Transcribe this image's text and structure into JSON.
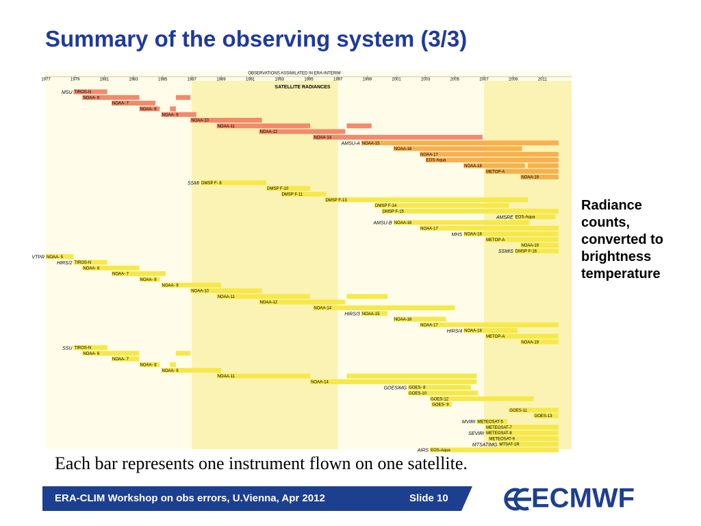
{
  "slide": {
    "title": "Summary of the observing system (3/3)",
    "note": "Radiance counts, converted to brightness temperature",
    "caption": "Each bar represents one instrument flown on one satellite.",
    "footer": "ERA-CLIM Workshop on obs errors, U.Vienna, Apr 2012",
    "slide_number": "Slide 10",
    "logo": "ECMWF"
  },
  "chart_data": {
    "type": "gantt",
    "title": "OBSERVATIONS ASSIMILATED IN ERA-INTERIM",
    "subtitle": "SATELLITE RADIANCES",
    "xlim": [
      1977,
      2013
    ],
    "xticks": [
      1977,
      1979,
      1981,
      1983,
      1985,
      1987,
      1989,
      1991,
      1993,
      1995,
      1997,
      1999,
      2001,
      2003,
      2005,
      2007,
      2009,
      2011
    ],
    "shaded": [
      [
        1987,
        1997
      ],
      [
        2007,
        2013
      ]
    ],
    "groups": [
      {
        "label": "MSU",
        "color": "#f28a6b",
        "rows": [
          {
            "name": "TIROS-N",
            "bars": [
              [
                1978.9,
                1981.2
              ]
            ]
          },
          {
            "name": "NOAA- 6",
            "bars": [
              [
                1979.5,
                1983.4
              ],
              [
                1985.9,
                1986.9
              ]
            ]
          },
          {
            "name": "NOAA- 7",
            "bars": [
              [
                1981.5,
                1984.5
              ]
            ]
          },
          {
            "name": "NOAA- 8",
            "bars": [
              [
                1983.4,
                1984.8
              ],
              [
                1985.5,
                1985.9
              ]
            ]
          },
          {
            "name": "NOAA- 9",
            "bars": [
              [
                1984.9,
                1987.3
              ]
            ]
          },
          {
            "name": "NOAA-10",
            "bars": [
              [
                1986.9,
                1991.8
              ]
            ]
          },
          {
            "name": "NOAA-11",
            "bars": [
              [
                1988.7,
                1995.1
              ],
              [
                1997.6,
                1999.3
              ]
            ]
          },
          {
            "name": "NOAA-12",
            "bars": [
              [
                1991.6,
                1997.5
              ]
            ]
          },
          {
            "name": "NOAA-14",
            "bars": [
              [
                1995.3,
                2006.9
              ]
            ]
          }
        ]
      },
      {
        "label": "AMSU-A",
        "color": "#f7b04e",
        "rows": [
          {
            "name": "NOAA-15",
            "bars": [
              [
                1998.6,
                2012.1
              ]
            ]
          },
          {
            "name": "NOAA-16",
            "bars": [
              [
                2000.8,
                2009.6
              ]
            ]
          },
          {
            "name": "NOAA-17",
            "bars": [
              [
                2002.6,
                2012.1
              ]
            ]
          },
          {
            "name": "EOS-Aqua",
            "bars": [
              [
                2003,
                2012.1
              ]
            ]
          },
          {
            "name": "NOAA-18",
            "bars": [
              [
                2005.6,
                2009.8
              ],
              [
                2010,
                2012.1
              ]
            ]
          },
          {
            "name": "METOP-A",
            "bars": [
              [
                2007.1,
                2012.1
              ]
            ]
          },
          {
            "name": "NOAA-19",
            "bars": [
              [
                2009.5,
                2012.1
              ]
            ]
          }
        ]
      },
      {
        "label": "SSMI",
        "color": "#f6e84a",
        "rows": [
          {
            "name": "DMSP F- 8",
            "bars": [
              [
                1987.6,
                1992.1
              ]
            ]
          },
          {
            "name": "DMSP F-10",
            "bars": [
              [
                1992.1,
                1995.1
              ]
            ]
          },
          {
            "name": "DMSP F-11",
            "bars": [
              [
                1993.1,
                1996.2
              ]
            ]
          },
          {
            "name": "DMSP F-13",
            "bars": [
              [
                1996.1,
                2010
              ]
            ]
          },
          {
            "name": "DMSP F-14",
            "bars": [
              [
                1999.5,
                2008.7
              ]
            ]
          },
          {
            "name": "DMSP F-15",
            "bars": [
              [
                2000,
                2012.1
              ]
            ]
          }
        ]
      },
      {
        "label": "AMSRE",
        "color": "#f6e84a",
        "rows": [
          {
            "name": "EOS-Aqua",
            "bars": [
              [
                2009.1,
                2011.9
              ]
            ]
          }
        ]
      },
      {
        "label": "AMSU-B",
        "color": "#f6e84a",
        "rows": [
          {
            "name": "NOAA-16",
            "bars": [
              [
                2000.8,
                2010.1
              ]
            ]
          },
          {
            "name": "NOAA-17",
            "bars": [
              [
                2002.6,
                2012.1
              ]
            ]
          }
        ]
      },
      {
        "label": "MHS",
        "color": "#f6e84a",
        "rows": [
          {
            "name": "NOAA-18",
            "bars": [
              [
                2005.6,
                2012.1
              ]
            ]
          },
          {
            "name": "METOP-A",
            "bars": [
              [
                2007.1,
                2012.1
              ]
            ]
          },
          {
            "name": "NOAA-19",
            "bars": [
              [
                2009.5,
                2012.1
              ]
            ]
          }
        ]
      },
      {
        "label": "SSMIS",
        "color": "#f6e84a",
        "rows": [
          {
            "name": "DMSP F-16",
            "bars": [
              [
                2009.1,
                2012.1
              ]
            ]
          }
        ]
      },
      {
        "label": "VTPR",
        "color": "#f6e84a",
        "rows": [
          {
            "name": "NOAA- 5",
            "bars": [
              [
                1977,
                1978.9
              ]
            ]
          }
        ]
      },
      {
        "label": "HIRS/2",
        "color": "#f6e84a",
        "rows": [
          {
            "name": "TIROS-N",
            "bars": [
              [
                1978.9,
                1981.2
              ]
            ]
          },
          {
            "name": "NOAA- 6",
            "bars": [
              [
                1979.5,
                1983.4
              ]
            ]
          },
          {
            "name": "NOAA- 7",
            "bars": [
              [
                1981.5,
                1985.2
              ]
            ]
          },
          {
            "name": "NOAA- 8",
            "bars": [
              [
                1983.4,
                1984.8
              ]
            ]
          },
          {
            "name": "NOAA- 9",
            "bars": [
              [
                1984.9,
                1989
              ]
            ]
          },
          {
            "name": "NOAA-10",
            "bars": [
              [
                1986.9,
                1991.8
              ]
            ]
          },
          {
            "name": "NOAA-11",
            "bars": [
              [
                1988.7,
                1995.1
              ],
              [
                1997.6,
                2000.4
              ]
            ]
          },
          {
            "name": "NOAA-12",
            "bars": [
              [
                1991.6,
                1997.5
              ]
            ]
          },
          {
            "name": "NOAA-14",
            "bars": [
              [
                1995.3,
                2005
              ]
            ]
          }
        ]
      },
      {
        "label": "HIRS/3",
        "color": "#f6e84a",
        "rows": [
          {
            "name": "NOAA-15",
            "bars": [
              [
                1998.6,
                2000.4
              ]
            ]
          },
          {
            "name": "NOAA-16",
            "bars": [
              [
                2000.8,
                2004.4
              ]
            ]
          },
          {
            "name": "NOAA-17",
            "bars": [
              [
                2002.6,
                2012.1
              ]
            ]
          }
        ]
      },
      {
        "label": "HIRS/4",
        "color": "#f6e84a",
        "rows": [
          {
            "name": "NOAA-18",
            "bars": [
              [
                2005.6,
                2009.3
              ]
            ]
          },
          {
            "name": "METOP-A",
            "bars": [
              [
                2007.1,
                2012.1
              ]
            ]
          },
          {
            "name": "NOAA-19",
            "bars": [
              [
                2009.5,
                2012.1
              ]
            ]
          }
        ]
      },
      {
        "label": "SSU",
        "color": "#f6e84a",
        "rows": [
          {
            "name": "TIROS-N",
            "bars": [
              [
                1978.9,
                1981.2
              ]
            ]
          },
          {
            "name": "NOAA- 6",
            "bars": [
              [
                1979.5,
                1983.4
              ],
              [
                1985.9,
                1986.9
              ]
            ]
          },
          {
            "name": "NOAA- 7",
            "bars": [
              [
                1981.5,
                1983.4
              ]
            ]
          },
          {
            "name": "NOAA- 8",
            "bars": [
              [
                1983.4,
                1984.8
              ],
              [
                1985.5,
                1985.9
              ]
            ]
          },
          {
            "name": "NOAA- 9",
            "bars": [
              [
                1984.9,
                1989
              ]
            ]
          },
          {
            "name": "NOAA-11",
            "bars": [
              [
                1988.7,
                1995.1
              ],
              [
                1997.6,
                2006.5
              ]
            ]
          },
          {
            "name": "NOAA-14",
            "bars": [
              [
                1995.1,
                2006.5
              ]
            ]
          }
        ]
      },
      {
        "label": "GOESIMG",
        "color": "#f6e84a",
        "rows": [
          {
            "name": "GOES- 8",
            "bars": [
              [
                2001.8,
                2006.1
              ]
            ]
          },
          {
            "name": "GOES-10",
            "bars": [
              [
                2001.8,
                2006.6
              ]
            ]
          },
          {
            "name": "GOES-12",
            "bars": [
              [
                2003.3,
                2010.4
              ]
            ]
          },
          {
            "name": "GOES- 9",
            "bars": [
              [
                2003.4,
                2004.8
              ]
            ]
          },
          {
            "name": "GOES-11",
            "bars": [
              [
                2008.7,
                2012.1
              ]
            ]
          },
          {
            "name": "GOES-13",
            "bars": [
              [
                2010.4,
                2012.1
              ]
            ]
          }
        ]
      },
      {
        "label": "MVIRI",
        "color": "#f6e84a",
        "rows": [
          {
            "name": "METEOSAT-5",
            "bars": [
              [
                2006.5,
                2008.6
              ]
            ]
          },
          {
            "name": "METEOSAT-7",
            "bars": [
              [
                2007.1,
                2012.1
              ]
            ]
          }
        ]
      },
      {
        "label": "SEVIRI",
        "color": "#f6e84a",
        "rows": [
          {
            "name": "METEOSAT-8",
            "bars": [
              [
                2007.1,
                2012.1
              ]
            ]
          },
          {
            "name": "METEOSAT-9",
            "bars": [
              [
                2007.3,
                2012.1
              ]
            ]
          }
        ]
      },
      {
        "label": "MTSATIMG",
        "color": "#f6e84a",
        "rows": [
          {
            "name": "MTSAT-1R",
            "bars": [
              [
                2008,
                2012.1
              ]
            ]
          }
        ]
      },
      {
        "label": "AIRS",
        "color": "#f6e84a",
        "rows": [
          {
            "name": "EOS-Aqua",
            "bars": [
              [
                2003.3,
                2012.1
              ]
            ]
          }
        ]
      }
    ]
  }
}
